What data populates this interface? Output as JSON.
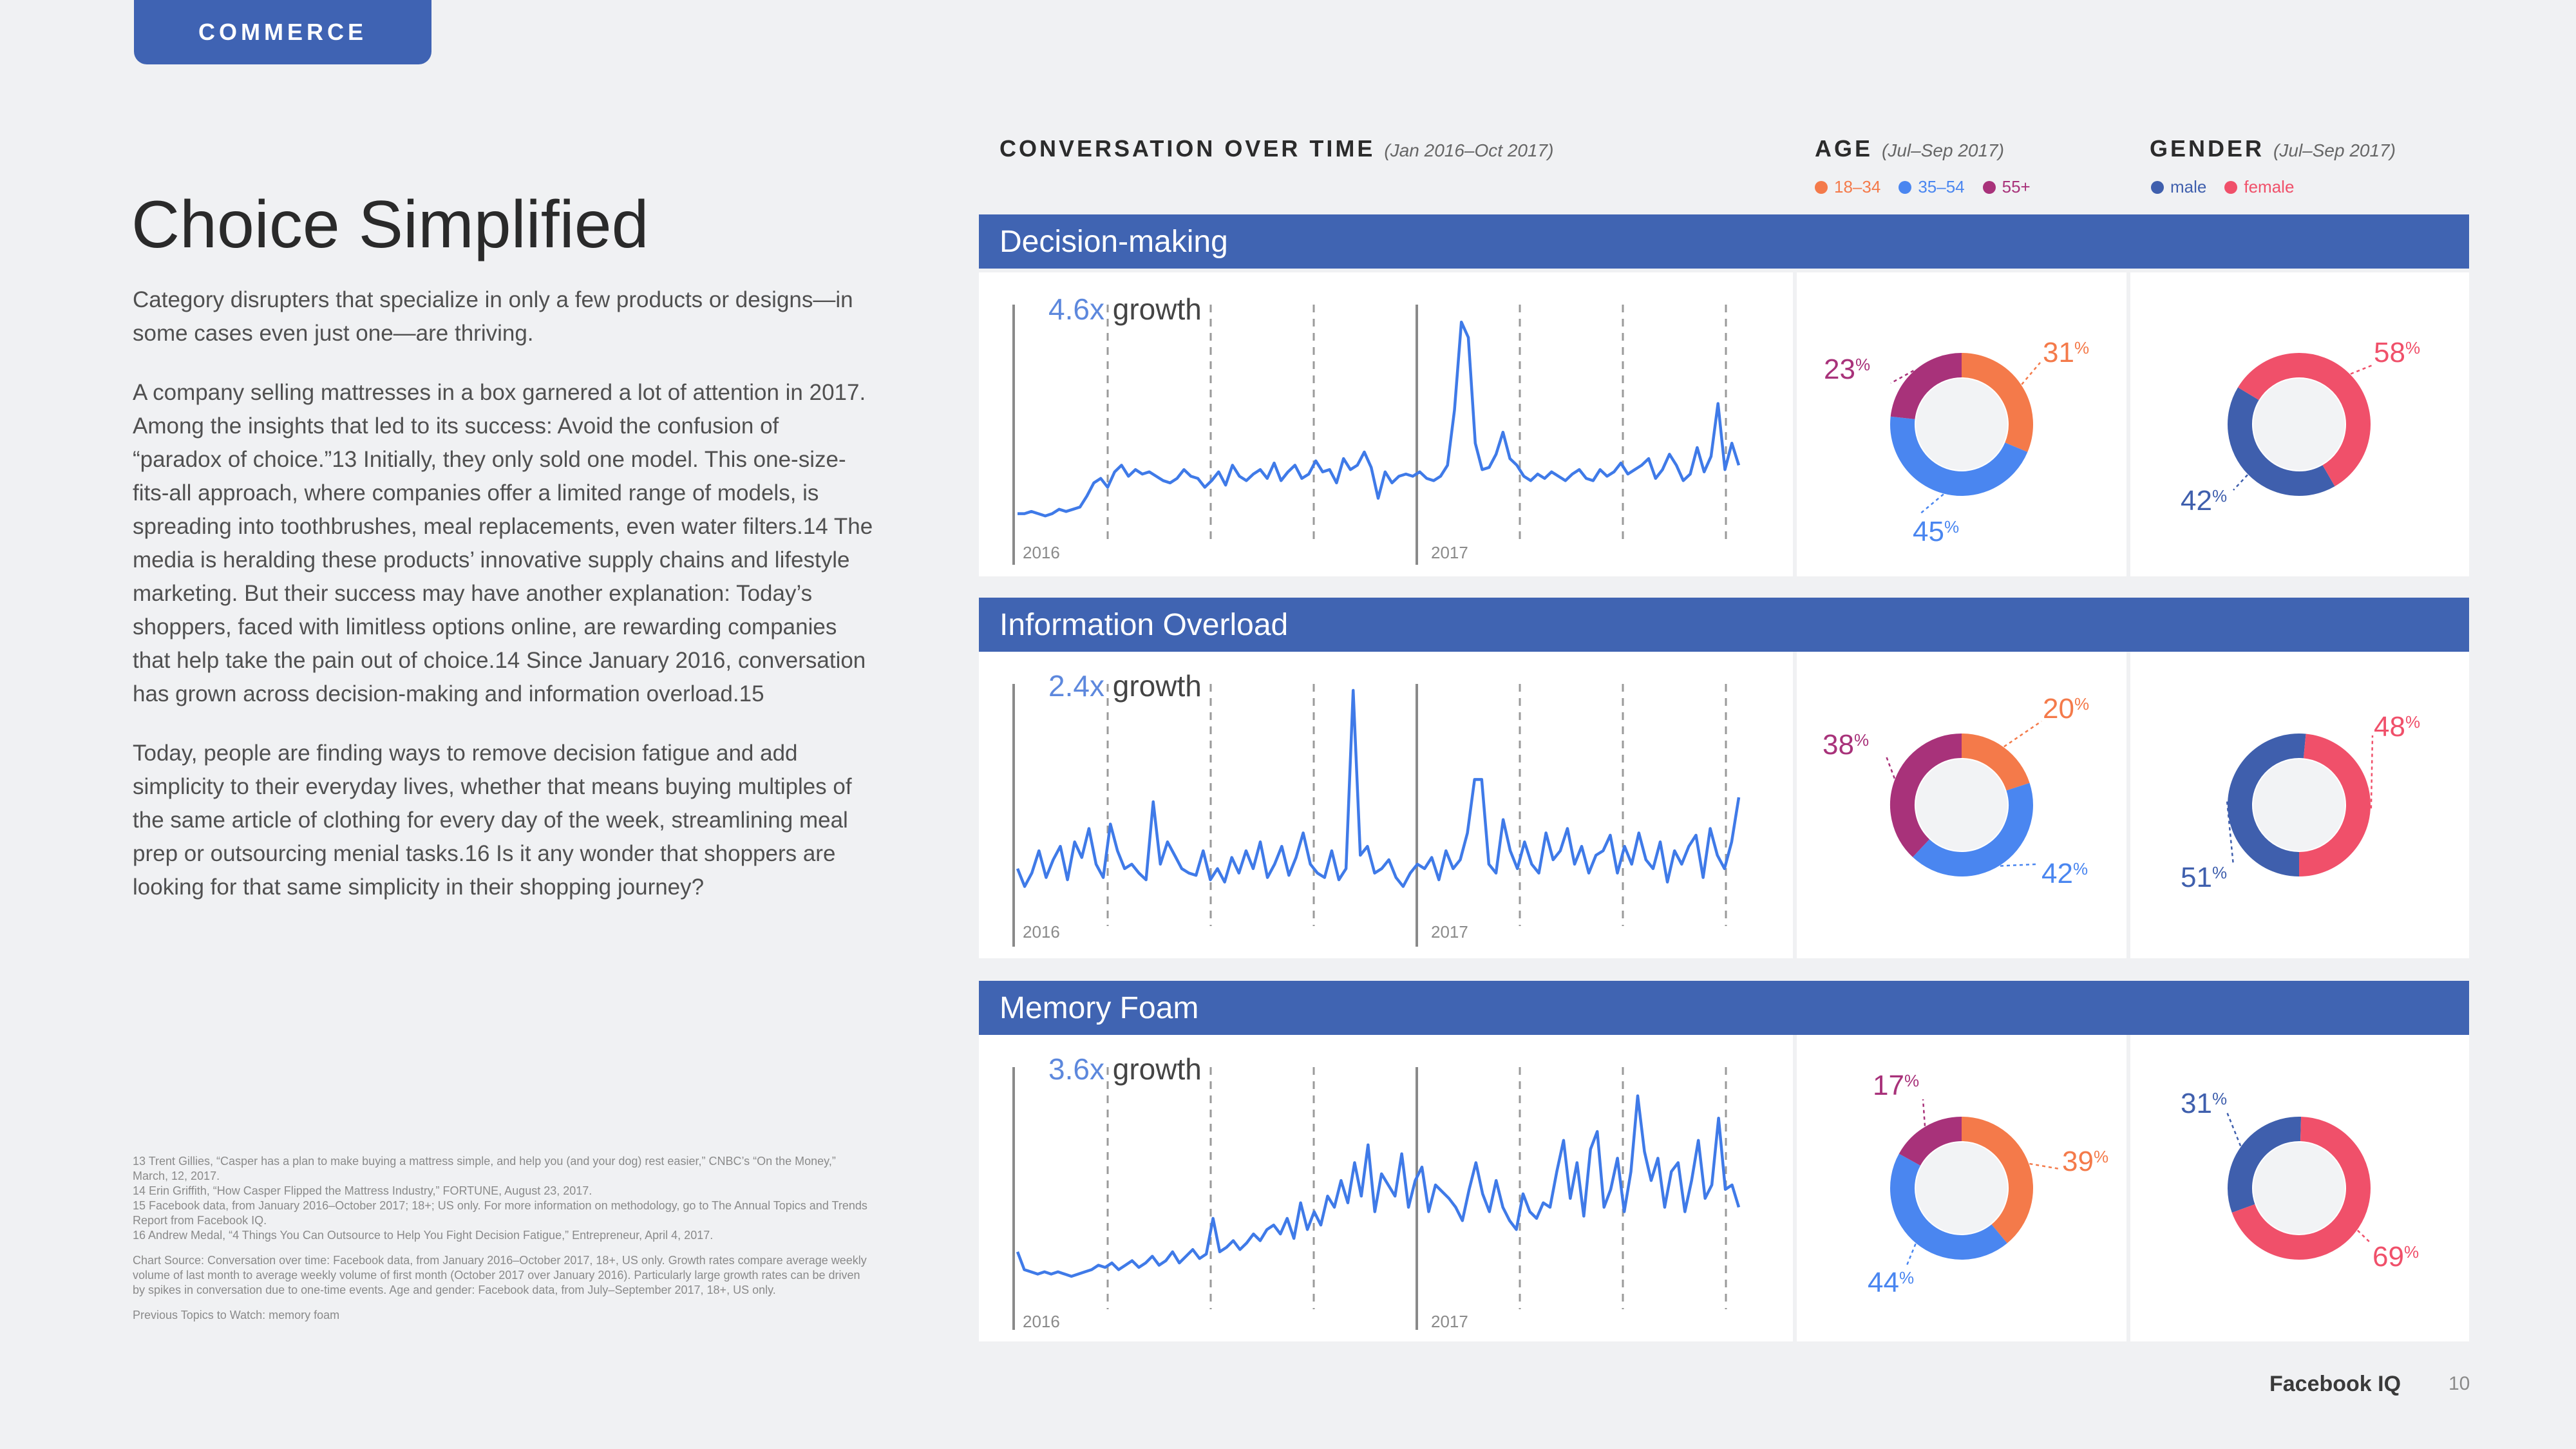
{
  "section_tab": "COMMERCE",
  "title": "Choice Simplified",
  "paragraphs": [
    "Category disrupters that specialize in only a few products or designs—in some cases even just one—are thriving.",
    "A company selling mattresses in a box garnered a lot of attention in 2017. Among the insights that led to its success: Avoid the confusion of “paradox of choice.”13 Initially, they only sold one model. This one-size-fits-all approach, where companies offer a limited range of models, is spreading into toothbrushes, meal replacements, even water filters.14 The media is heralding these products’ innovative supply chains and lifestyle marketing. But their success may have another explanation: Today’s shoppers, faced with limitless options online, are rewarding companies that help take the pain out of choice.14 Since January 2016, conversation has grown across decision-making and information overload.15",
    "Today, people are finding ways to remove decision fatigue and add simplicity to their everyday lives, whether that means buying multiples of the same article of clothing for every day of the week, streamlining meal prep or outsourcing menial tasks.16 Is it any wonder that shoppers are looking for that same simplicity in their shopping journey?"
  ],
  "footnotes": [
    "13  Trent Gillies, “Casper has a plan to make buying a mattress simple, and help you (and your dog) rest easier,” CNBC’s “On the Money,” March, 12, 2017.",
    "14  Erin Griffith, “How Casper Flipped the Mattress Industry,” FORTUNE, August 23, 2017.",
    "15  Facebook data, from January 2016–October 2017; 18+; US only. For more information on methodology, go to The Annual Topics and Trends Report from Facebook IQ.",
    "16  Andrew Medal, “4 Things You Can Outsource to Help You Fight Decision Fatigue,” Entrepreneur, April 4, 2017."
  ],
  "chart_source": "Chart Source:  Conversation over time: Facebook data, from January 2016–October 2017, 18+, US only. Growth rates compare average weekly volume of last month to average weekly volume of first month (October 2017 over January 2016). Particularly large growth rates can be driven by spikes in conversation due to one-time events. Age and gender: Facebook data, from July–September 2017, 18+, US only.",
  "previous_topics": "Previous Topics to Watch: memory foam",
  "headers": {
    "conversation": "CONVERSATION OVER TIME",
    "conversation_sub": "(Jan 2016–Oct 2017)",
    "age": "AGE",
    "age_sub": "(Jul–Sep 2017)",
    "gender": "GENDER",
    "gender_sub": "(Jul–Sep 2017)"
  },
  "age_legend": [
    {
      "label": "18–34",
      "color": "#f47a4a"
    },
    {
      "label": "35–54",
      "color": "#4a86f0"
    },
    {
      "label": "55+",
      "color": "#a8327a"
    }
  ],
  "gender_legend": [
    {
      "label": "male",
      "color": "#3f5fad"
    },
    {
      "label": "female",
      "color": "#f0506a"
    }
  ],
  "colors": {
    "bar": "#4064b2",
    "line": "#3f7ae8",
    "age_18_34": "#f47a4a",
    "age_35_54": "#4a86f0",
    "age_55_plus": "#a8327a",
    "male": "#3f5fad",
    "female": "#f0506a"
  },
  "year_labels": [
    "2016",
    "2017"
  ],
  "growth_word": "growth",
  "footer": {
    "brand": "Facebook IQ",
    "page": "10"
  },
  "chart_data": [
    {
      "type": "line",
      "title": "Decision-making",
      "growth": "4.6x",
      "x_range": [
        "Jan 2016",
        "Oct 2017"
      ],
      "values": [
        8,
        8,
        9,
        8,
        7,
        8,
        10,
        9,
        10,
        11,
        16,
        22,
        24,
        20,
        27,
        30,
        25,
        28,
        26,
        27,
        25,
        23,
        22,
        24,
        28,
        25,
        24,
        20,
        23,
        27,
        21,
        30,
        25,
        23,
        26,
        28,
        24,
        31,
        23,
        27,
        30,
        24,
        26,
        32,
        27,
        28,
        22,
        33,
        28,
        30,
        36,
        29,
        15,
        27,
        22,
        25,
        26,
        25,
        27,
        24,
        23,
        25,
        30,
        55,
        95,
        88,
        40,
        28,
        29,
        35,
        45,
        33,
        30,
        25,
        23,
        26,
        24,
        27,
        25,
        23,
        26,
        28,
        24,
        23,
        28,
        25,
        27,
        31,
        26,
        28,
        30,
        33,
        24,
        28,
        35,
        30,
        23,
        26,
        38,
        27,
        34,
        58,
        28,
        40,
        30
      ],
      "ylim": [
        0,
        100
      ]
    },
    {
      "type": "line",
      "title": "Information Overload",
      "growth": "2.4x",
      "x_range": [
        "Jan 2016",
        "Oct 2017"
      ],
      "values": [
        20,
        12,
        18,
        28,
        16,
        24,
        30,
        15,
        32,
        25,
        38,
        22,
        16,
        40,
        28,
        20,
        22,
        18,
        15,
        50,
        22,
        32,
        26,
        20,
        18,
        17,
        28,
        15,
        20,
        14,
        25,
        18,
        28,
        20,
        32,
        16,
        22,
        30,
        17,
        25,
        36,
        22,
        18,
        16,
        28,
        15,
        20,
        100,
        26,
        30,
        18,
        20,
        24,
        16,
        12,
        18,
        22,
        20,
        25,
        15,
        28,
        20,
        24,
        36,
        60,
        60,
        22,
        18,
        42,
        28,
        20,
        32,
        22,
        18,
        36,
        24,
        28,
        38,
        22,
        30,
        18,
        26,
        28,
        35,
        18,
        30,
        22,
        36,
        24,
        20,
        32,
        14,
        28,
        22,
        30,
        35,
        16,
        38,
        26,
        20,
        32,
        52
      ],
      "ylim": [
        0,
        100
      ]
    },
    {
      "type": "line",
      "title": "Memory Foam",
      "growth": "3.6x",
      "x_range": [
        "Jan 2016",
        "Oct 2017"
      ],
      "values": [
        20,
        12,
        11,
        10,
        11,
        10,
        11,
        10,
        9,
        10,
        11,
        12,
        14,
        13,
        15,
        12,
        14,
        16,
        13,
        15,
        18,
        14,
        16,
        20,
        15,
        18,
        21,
        17,
        19,
        35,
        20,
        22,
        25,
        21,
        24,
        28,
        25,
        30,
        32,
        28,
        35,
        26,
        42,
        30,
        38,
        32,
        45,
        40,
        52,
        42,
        60,
        45,
        68,
        38,
        55,
        50,
        45,
        64,
        40,
        52,
        58,
        38,
        50,
        47,
        44,
        40,
        34,
        48,
        60,
        46,
        38,
        52,
        40,
        34,
        30,
        46,
        38,
        35,
        42,
        40,
        56,
        70,
        44,
        60,
        36,
        66,
        74,
        40,
        48,
        62,
        38,
        56,
        90,
        65,
        52,
        62,
        40,
        56,
        60,
        38,
        52,
        70,
        44,
        50,
        80,
        48,
        50,
        40
      ],
      "ylim": [
        0,
        100
      ]
    },
    {
      "type": "pie",
      "title": "AGE — Decision-making",
      "slices": [
        {
          "label": "18–34",
          "value": 31
        },
        {
          "label": "35–54",
          "value": 45
        },
        {
          "label": "55+",
          "value": 23
        }
      ]
    },
    {
      "type": "pie",
      "title": "GENDER — Decision-making",
      "slices": [
        {
          "label": "male",
          "value": 42
        },
        {
          "label": "female",
          "value": 58
        }
      ]
    },
    {
      "type": "pie",
      "title": "AGE — Information Overload",
      "slices": [
        {
          "label": "18–34",
          "value": 20
        },
        {
          "label": "35–54",
          "value": 42
        },
        {
          "label": "55+",
          "value": 38
        }
      ]
    },
    {
      "type": "pie",
      "title": "GENDER — Information Overload",
      "slices": [
        {
          "label": "male",
          "value": 51
        },
        {
          "label": "female",
          "value": 48
        }
      ]
    },
    {
      "type": "pie",
      "title": "AGE — Memory Foam",
      "slices": [
        {
          "label": "18–34",
          "value": 39
        },
        {
          "label": "35–54",
          "value": 44
        },
        {
          "label": "55+",
          "value": 17
        }
      ]
    },
    {
      "type": "pie",
      "title": "GENDER — Memory Foam",
      "slices": [
        {
          "label": "male",
          "value": 31
        },
        {
          "label": "female",
          "value": 69
        }
      ]
    }
  ]
}
